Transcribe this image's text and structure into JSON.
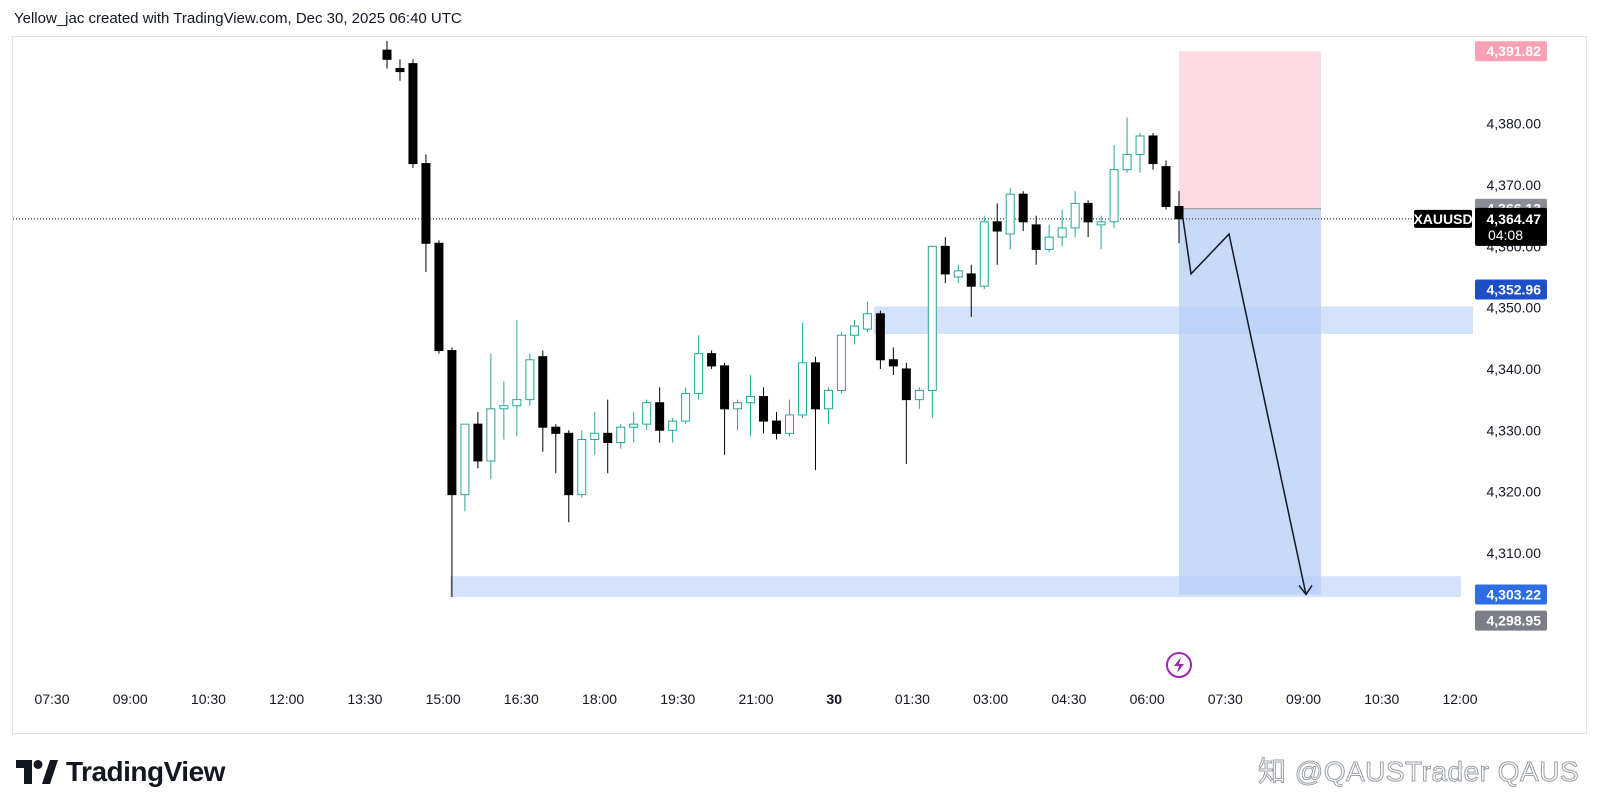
{
  "header": {
    "text": "Yellow_jac created with TradingView.com, Dec 30, 2025 06:40 UTC"
  },
  "brand": {
    "logo_icon": "tradingview-logo-icon",
    "name": "TradingView"
  },
  "watermark": {
    "text": "知 @QAUSTrader QAUS"
  },
  "chart_data": {
    "type": "candlestick",
    "symbol": "XAUUSD",
    "ylim": [
      4294,
      4393
    ],
    "grid": false,
    "x_ticks": [
      "07:30",
      "09:00",
      "10:30",
      "12:00",
      "13:30",
      "15:00",
      "16:30",
      "18:00",
      "19:30",
      "21:00",
      "30",
      "01:30",
      "03:00",
      "04:30",
      "06:00",
      "07:30",
      "09:00",
      "10:30",
      "12:00"
    ],
    "y_ticks": [
      "4,310.00",
      "4,320.00",
      "4,330.00",
      "4,340.00",
      "4,350.00",
      "4,360.00",
      "4,370.00",
      "4,380.00"
    ],
    "last_price": {
      "symbol": "XAUUSD",
      "value": "4,364.47",
      "countdown": "04:08",
      "color": "#000000"
    },
    "price_tags": [
      {
        "value": "4,391.82",
        "price": 4391.82,
        "bg": "#f7a1b6",
        "fg": "#131722"
      },
      {
        "value": "4,366.13",
        "price": 4366.13,
        "bg": "#8a8d96",
        "fg": "#ffffff"
      },
      {
        "value": "4,352.96",
        "price": 4352.96,
        "bg": "#1f4fc8",
        "fg": "#ffffff"
      },
      {
        "value": "4,303.22",
        "price": 4303.22,
        "bg": "#2f6de6",
        "fg": "#ffffff"
      },
      {
        "value": "4,298.95",
        "price": 4298.95,
        "bg": "#7b7e86",
        "fg": "#ffffff"
      }
    ],
    "candles": [
      {
        "o": 4392.0,
        "h": 4393.5,
        "l": 4389.0,
        "c": 4390.5
      },
      {
        "o": 4389.0,
        "h": 4390.5,
        "l": 4387.0,
        "c": 4388.5
      },
      {
        "o": 4389.8,
        "h": 4390.5,
        "l": 4372.8,
        "c": 4373.5
      },
      {
        "o": 4373.5,
        "h": 4375.0,
        "l": 4355.8,
        "c": 4360.5
      },
      {
        "o": 4360.5,
        "h": 4361.0,
        "l": 4342.5,
        "c": 4343.0
      },
      {
        "o": 4343.0,
        "h": 4343.5,
        "l": 4302.8,
        "c": 4319.5
      },
      {
        "o": 4319.5,
        "h": 4331.0,
        "l": 4316.8,
        "c": 4331.0
      },
      {
        "o": 4331.0,
        "h": 4333.0,
        "l": 4323.8,
        "c": 4325.0
      },
      {
        "o": 4325.0,
        "h": 4342.5,
        "l": 4322.0,
        "c": 4333.5
      },
      {
        "o": 4333.5,
        "h": 4338.0,
        "l": 4328.5,
        "c": 4334.0
      },
      {
        "o": 4334.0,
        "h": 4348.0,
        "l": 4329.0,
        "c": 4335.0
      },
      {
        "o": 4335.0,
        "h": 4342.5,
        "l": 4334.0,
        "c": 4341.5
      },
      {
        "o": 4342.0,
        "h": 4343.0,
        "l": 4326.5,
        "c": 4330.5
      },
      {
        "o": 4330.5,
        "h": 4331.0,
        "l": 4323.0,
        "c": 4329.5
      },
      {
        "o": 4329.5,
        "h": 4330.0,
        "l": 4315.0,
        "c": 4319.5
      },
      {
        "o": 4319.5,
        "h": 4330.0,
        "l": 4319.0,
        "c": 4328.5
      },
      {
        "o": 4328.5,
        "h": 4333.0,
        "l": 4326.0,
        "c": 4329.5
      },
      {
        "o": 4329.5,
        "h": 4335.0,
        "l": 4323.0,
        "c": 4328.0
      },
      {
        "o": 4328.0,
        "h": 4331.0,
        "l": 4327.0,
        "c": 4330.5
      },
      {
        "o": 4330.5,
        "h": 4333.0,
        "l": 4328.0,
        "c": 4331.0
      },
      {
        "o": 4331.0,
        "h": 4335.0,
        "l": 4330.0,
        "c": 4334.5
      },
      {
        "o": 4334.5,
        "h": 4337.0,
        "l": 4328.0,
        "c": 4330.0
      },
      {
        "o": 4330.0,
        "h": 4332.0,
        "l": 4328.0,
        "c": 4331.5
      },
      {
        "o": 4331.5,
        "h": 4337.0,
        "l": 4331.0,
        "c": 4336.0
      },
      {
        "o": 4336.0,
        "h": 4345.5,
        "l": 4335.0,
        "c": 4342.5
      },
      {
        "o": 4342.5,
        "h": 4343.0,
        "l": 4340.0,
        "c": 4340.5
      },
      {
        "o": 4340.5,
        "h": 4341.0,
        "l": 4326.0,
        "c": 4333.5
      },
      {
        "o": 4333.5,
        "h": 4335.0,
        "l": 4330.0,
        "c": 4334.5
      },
      {
        "o": 4334.5,
        "h": 4339.0,
        "l": 4329.0,
        "c": 4335.5
      },
      {
        "o": 4335.5,
        "h": 4337.0,
        "l": 4329.5,
        "c": 4331.5
      },
      {
        "o": 4331.5,
        "h": 4333.0,
        "l": 4328.5,
        "c": 4329.5
      },
      {
        "o": 4329.5,
        "h": 4335.0,
        "l": 4329.0,
        "c": 4332.5
      },
      {
        "o": 4332.5,
        "h": 4347.5,
        "l": 4332.0,
        "c": 4341.0
      },
      {
        "o": 4341.0,
        "h": 4342.0,
        "l": 4323.5,
        "c": 4333.5
      },
      {
        "o": 4333.5,
        "h": 4337.0,
        "l": 4331.0,
        "c": 4336.5
      },
      {
        "o": 4336.5,
        "h": 4346.0,
        "l": 4336.0,
        "c": 4345.5
      },
      {
        "o": 4345.5,
        "h": 4348.0,
        "l": 4344.0,
        "c": 4347.0
      },
      {
        "o": 4346.5,
        "h": 4351.0,
        "l": 4346.0,
        "c": 4349.0
      },
      {
        "o": 4349.0,
        "h": 4349.5,
        "l": 4340.0,
        "c": 4341.5
      },
      {
        "o": 4341.5,
        "h": 4343.5,
        "l": 4339.0,
        "c": 4340.5
      },
      {
        "o": 4340.0,
        "h": 4341.0,
        "l": 4324.5,
        "c": 4335.0
      },
      {
        "o": 4335.0,
        "h": 4337.0,
        "l": 4333.5,
        "c": 4336.5
      },
      {
        "o": 4336.5,
        "h": 4360.0,
        "l": 4332.0,
        "c": 4360.0
      },
      {
        "o": 4360.0,
        "h": 4361.5,
        "l": 4354.0,
        "c": 4355.5
      },
      {
        "o": 4355.0,
        "h": 4357.0,
        "l": 4354.0,
        "c": 4356.0
      },
      {
        "o": 4355.5,
        "h": 4357.0,
        "l": 4348.5,
        "c": 4353.5
      },
      {
        "o": 4353.5,
        "h": 4365.0,
        "l": 4353.0,
        "c": 4364.0
      },
      {
        "o": 4364.0,
        "h": 4367.0,
        "l": 4357.0,
        "c": 4362.5
      },
      {
        "o": 4362.0,
        "h": 4369.5,
        "l": 4359.5,
        "c": 4368.5
      },
      {
        "o": 4368.5,
        "h": 4369.0,
        "l": 4362.5,
        "c": 4364.0
      },
      {
        "o": 4363.5,
        "h": 4365.0,
        "l": 4357.0,
        "c": 4359.5
      },
      {
        "o": 4359.5,
        "h": 4363.5,
        "l": 4359.0,
        "c": 4361.5
      },
      {
        "o": 4361.5,
        "h": 4366.0,
        "l": 4360.0,
        "c": 4363.0
      },
      {
        "o": 4363.0,
        "h": 4369.0,
        "l": 4361.5,
        "c": 4367.0
      },
      {
        "o": 4367.0,
        "h": 4367.5,
        "l": 4361.5,
        "c": 4364.0
      },
      {
        "o": 4363.5,
        "h": 4365.0,
        "l": 4359.5,
        "c": 4364.0
      },
      {
        "o": 4364.0,
        "h": 4376.5,
        "l": 4363.0,
        "c": 4372.5
      },
      {
        "o": 4372.5,
        "h": 4381.0,
        "l": 4372.0,
        "c": 4375.0
      },
      {
        "o": 4375.0,
        "h": 4378.5,
        "l": 4372.0,
        "c": 4378.0
      },
      {
        "o": 4378.0,
        "h": 4378.5,
        "l": 4372.5,
        "c": 4373.5
      },
      {
        "o": 4373.0,
        "h": 4374.0,
        "l": 4366.0,
        "c": 4366.5
      },
      {
        "o": 4366.5,
        "h": 4369.0,
        "l": 4360.5,
        "c": 4364.5
      }
    ],
    "zones": [
      {
        "name": "upper-demand-zone",
        "from": 4345.7,
        "to": 4350.2,
        "color": "#cfe0fb"
      },
      {
        "name": "lower-target-zone",
        "from": 4302.8,
        "to": 4306.2,
        "color": "#cfe0fb"
      }
    ],
    "position": {
      "type": "short",
      "entry": 4366.13,
      "stop": 4391.82,
      "target": 4303.22,
      "stop_color": "#fcdbe3",
      "target_color": "#b7cdf7"
    },
    "projection": [
      {
        "t": "06:40",
        "price": 4364.47
      },
      {
        "t": "06:50",
        "price": 4355.5
      },
      {
        "t": "07:40",
        "price": 4362.0
      },
      {
        "t": "09:00",
        "price": 4303.22
      }
    ],
    "event_icon": "lightning-icon"
  }
}
